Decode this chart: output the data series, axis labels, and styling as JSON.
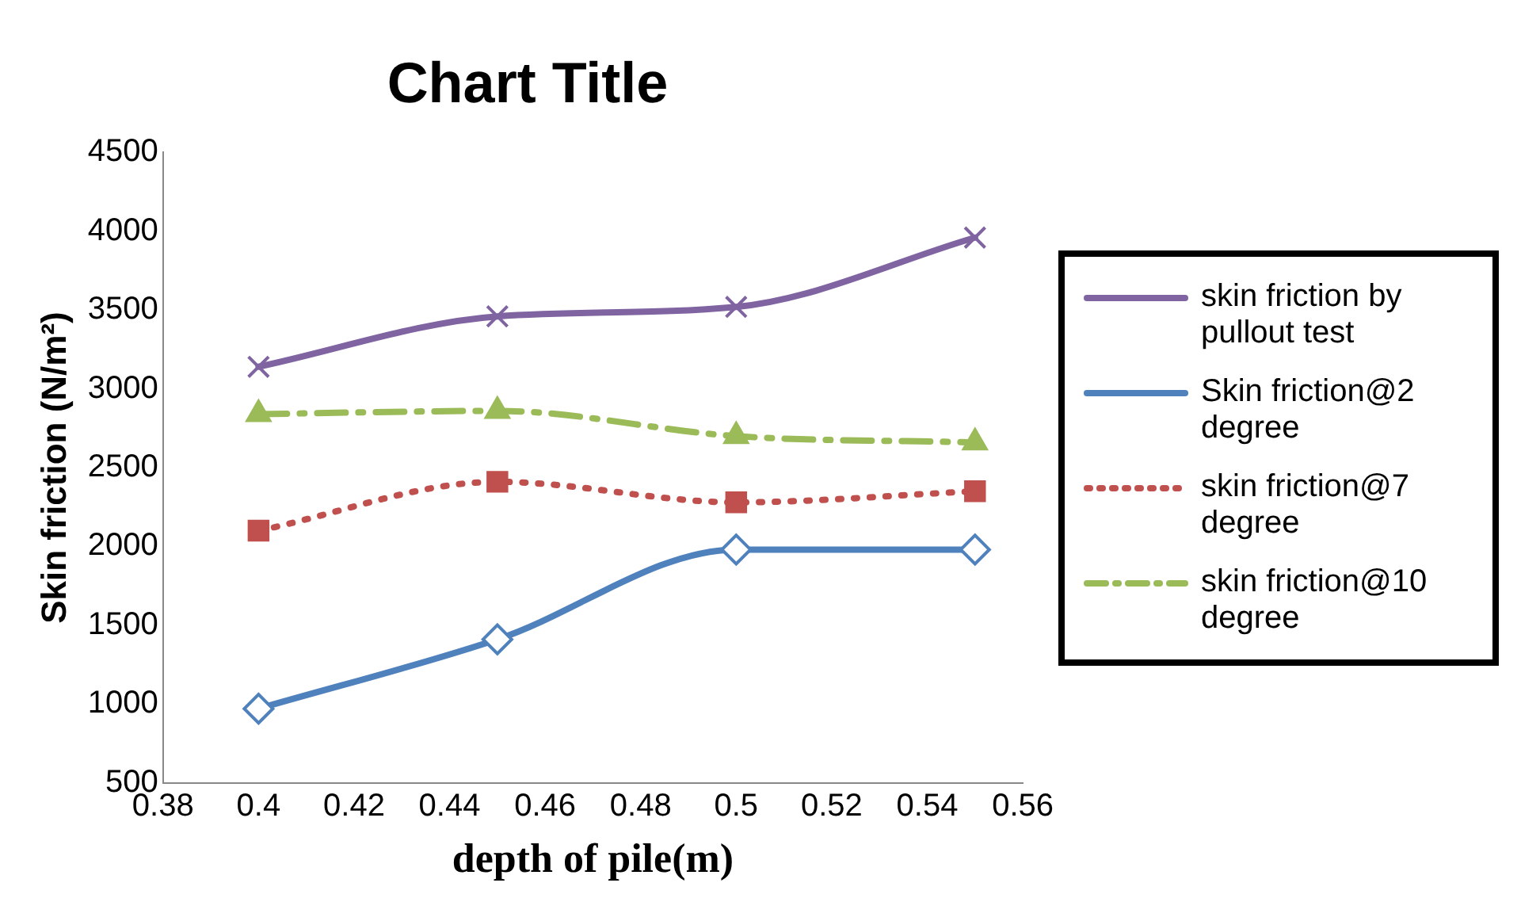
{
  "chart_data": {
    "type": "line",
    "title": "Chart Title",
    "xlabel": "depth of pile(m)",
    "ylabel": "Skin friction (N/m²)",
    "x": [
      0.4,
      0.45,
      0.5,
      0.55
    ],
    "series": [
      {
        "name": "skin friction by pullout test",
        "color": "#8064a2",
        "marker": "cross",
        "line_style": "solid",
        "values": [
          3140,
          3460,
          3520,
          3960
        ]
      },
      {
        "name": "Skin friction@2 degree",
        "color": "#4f81bd",
        "marker": "diamond",
        "line_style": "solid",
        "values": [
          970,
          1410,
          1980,
          1980
        ]
      },
      {
        "name": "skin friction@7 degree",
        "color": "#c0504d",
        "marker": "square",
        "line_style": "dotted",
        "values": [
          2100,
          2410,
          2280,
          2350
        ]
      },
      {
        "name": "skin friction@10 degree",
        "color": "#9bbb59",
        "marker": "triangle",
        "line_style": "dashed",
        "values": [
          2840,
          2860,
          2700,
          2660
        ]
      }
    ],
    "xlim": [
      0.38,
      0.56
    ],
    "xticks": [
      0.38,
      0.4,
      0.42,
      0.44,
      0.46,
      0.48,
      0.5,
      0.52,
      0.54,
      0.56
    ],
    "ylim": [
      500,
      4500
    ],
    "yticks": [
      500,
      1000,
      1500,
      2000,
      2500,
      3000,
      3500,
      4000,
      4500
    ],
    "grid": false,
    "legend": "right"
  }
}
